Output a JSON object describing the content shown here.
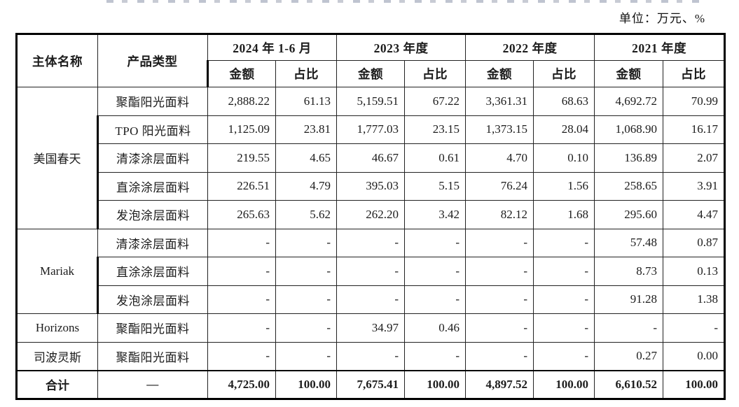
{
  "page": {
    "unit_label": "单位：万元、%"
  },
  "table": {
    "headers": {
      "entity": "主体名称",
      "product": "产品类型",
      "periods": [
        "2024 年 1-6 月",
        "2023 年度",
        "2022 年度",
        "2021 年度"
      ],
      "amount": "金额",
      "ratio": "占比"
    },
    "groups": [
      {
        "entity": "美国春天",
        "rows": [
          {
            "product": "聚酯阳光面料",
            "values": [
              "2,888.22",
              "61.13",
              "5,159.51",
              "67.22",
              "3,361.31",
              "68.63",
              "4,692.72",
              "70.99"
            ]
          },
          {
            "product": "TPO 阳光面料",
            "values": [
              "1,125.09",
              "23.81",
              "1,777.03",
              "23.15",
              "1,373.15",
              "28.04",
              "1,068.90",
              "16.17"
            ]
          },
          {
            "product": "清漆涂层面料",
            "values": [
              "219.55",
              "4.65",
              "46.67",
              "0.61",
              "4.70",
              "0.10",
              "136.89",
              "2.07"
            ]
          },
          {
            "product": "直涂涂层面料",
            "values": [
              "226.51",
              "4.79",
              "395.03",
              "5.15",
              "76.24",
              "1.56",
              "258.65",
              "3.91"
            ]
          },
          {
            "product": "发泡涂层面料",
            "values": [
              "265.63",
              "5.62",
              "262.20",
              "3.42",
              "82.12",
              "1.68",
              "295.60",
              "4.47"
            ]
          }
        ]
      },
      {
        "entity": "Mariak",
        "rows": [
          {
            "product": "清漆涂层面料",
            "values": [
              "-",
              "-",
              "-",
              "-",
              "-",
              "-",
              "57.48",
              "0.87"
            ]
          },
          {
            "product": "直涂涂层面料",
            "values": [
              "-",
              "-",
              "-",
              "-",
              "-",
              "-",
              "8.73",
              "0.13"
            ]
          },
          {
            "product": "发泡涂层面料",
            "values": [
              "-",
              "-",
              "-",
              "-",
              "-",
              "-",
              "91.28",
              "1.38"
            ]
          }
        ]
      },
      {
        "entity": "Horizons",
        "rows": [
          {
            "product": "聚酯阳光面料",
            "values": [
              "-",
              "-",
              "34.97",
              "0.46",
              "-",
              "-",
              "-",
              "-"
            ]
          }
        ]
      },
      {
        "entity": "司波灵斯",
        "rows": [
          {
            "product": "聚酯阳光面料",
            "values": [
              "-",
              "-",
              "-",
              "-",
              "-",
              "-",
              "0.27",
              "0.00"
            ]
          }
        ]
      }
    ],
    "total": {
      "entity": "合计",
      "product": "—",
      "values": [
        "4,725.00",
        "100.00",
        "7,675.41",
        "100.00",
        "4,897.52",
        "100.00",
        "6,610.52",
        "100.00"
      ]
    }
  }
}
